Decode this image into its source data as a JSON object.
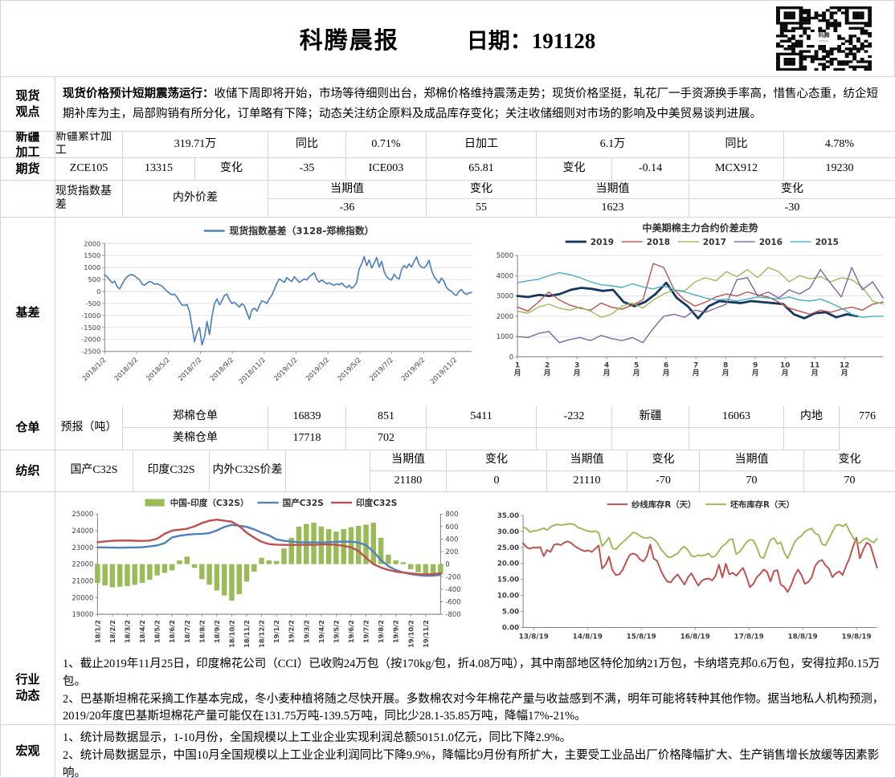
{
  "header": {
    "title": "科腾晨报",
    "date": "日期：191128",
    "qr_logo": "科腾"
  },
  "sections": {
    "spot_view": {
      "label": "现货\n观点",
      "lead": "现货价格预计短期震荡运行：",
      "body": "收储下周即将开始，市场等待细则出台，郑棉价格维持震荡走势；现货价格坚挺，轧花厂一手资源换手率高，惜售心态重，纺企短期补库为主，局部购销有所分化，订单略有下降；动态关注纺企原料及成品库存变化；关注收储细则对市场的影响及中美贸易谈判进展。"
    },
    "xinjiang": {
      "label": "新疆\n加工",
      "c": [
        "新疆累计加工",
        "319.71万",
        "同比",
        "0.71%",
        "日加工",
        "6.1万",
        "同比",
        "4.78%"
      ]
    },
    "futures": {
      "label": "期货",
      "c": [
        "ZCE105",
        "13315",
        "变化",
        "-35",
        "ICE003",
        "65.81",
        "变化",
        "-0.14",
        "MCX912",
        "19230"
      ]
    },
    "basis_table": {
      "name": "现货指数基差",
      "h1": "当期值",
      "v1": "-36",
      "h2": "变化",
      "v2": "55",
      "name2": "内外价差",
      "h3": "当期值",
      "v3": "1623",
      "h4": "变化",
      "v4": "-30"
    },
    "basis": {
      "label": "基差"
    },
    "warehouse": {
      "label": "仓单",
      "zh_name": "郑棉仓单",
      "zh_v1": "16839",
      "zh_v2": "851",
      "forecast": "预报（吨）",
      "fc_v1": "5411",
      "fc_v2": "-232",
      "xj_label": "新疆",
      "xj_v": "16063",
      "nd_label": "内地",
      "nd_v": "776",
      "us_name": "美棉仓单",
      "us_v1": "17718",
      "us_v2": "702"
    },
    "textile": {
      "label": "纺织",
      "n1": "国产C32S",
      "h1": "当期值",
      "v1": "21180",
      "h2": "变化",
      "v2": "0",
      "n2": "印度C32S",
      "h3": "当期值",
      "v3": "21110",
      "h4": "变化",
      "v4": "-70",
      "n3": "内外C32S价差",
      "h5": "当期值",
      "v5": "70",
      "h6": "变化",
      "v6": "70"
    },
    "industry": {
      "label": "行业\n动态",
      "p1": "1、截止2019年11月25日，印度棉花公司（CCI）已收购24万包（按170kg/包，折4.08万吨），其中南部地区特伦加纳21万包，卡纳塔克邦0.6万包，安得拉邦0.15万包。",
      "p2": "2、巴基斯坦棉花采摘工作基本完成，冬小麦种植将随之尽快开展。多数棉农对今年棉花产量与收益感到不满，明年可能将转种其他作物。据当地私人机构预测，2019/20年度巴基斯坦棉花产量可能仅在131.75万吨-139.5万吨，同比少28.1-35.85万吨，降幅17%-21%。"
    },
    "macro": {
      "label": "宏观",
      "p1": "1、统计局数据显示，1-10月份，全国规模以上工业企业实现利润总额50151.0亿元，同比下降2.9%。",
      "p2": "2、统计局数据显示，中国10月全国规模以上工业企业利润同比下降9.9%，降幅比9月份有所扩大，主要受工业品出厂价格降幅扩大、生产销售增长放缓等因素影响。"
    }
  },
  "colors": {
    "excel_blue": "#4f81bd",
    "excel_red": "#c0504d",
    "excel_green": "#9bbb59",
    "excel_purple": "#8064a2",
    "excel_cyan": "#4bacc6",
    "dark_blue_2019": "#17375e",
    "table_border": "#ccd5e0",
    "gridline": "#d9d9d9",
    "axis": "#808080"
  },
  "chart_data": [
    {
      "type": "line",
      "title": "现货指数基差（3128-郑棉指数）",
      "ylim": [
        -2500,
        2000
      ],
      "ytick_step": 500,
      "grid": true,
      "legend_position": "top-as-title",
      "x_tick_labels": [
        "2018/1/2",
        "2018/3/2",
        "2018/5/2",
        "2018/7/2",
        "2018/9/2",
        "2018/11/2",
        "2019/1/2",
        "2019/3/2",
        "2019/5/2",
        "2019/7/2",
        "2019/9/2",
        "2019/11/2"
      ],
      "series": [
        {
          "name": "现货指数基差（3128-郑棉指数）",
          "color": "#4f81bd",
          "width": 1.7,
          "values": [
            700,
            620,
            480,
            360,
            430,
            200,
            110,
            310,
            490,
            610,
            690,
            700,
            650,
            560,
            480,
            310,
            260,
            350,
            420,
            380,
            300,
            330,
            270,
            230,
            110,
            10,
            -70,
            -140,
            -110,
            -240,
            -420,
            -560,
            -580,
            -540,
            -850,
            -1450,
            -2100,
            -1700,
            -1500,
            -2230,
            -1900,
            -1250,
            -1800,
            -1050,
            -500,
            -310,
            -560,
            -380,
            -160,
            -110,
            -350,
            -500,
            -450,
            -550,
            -650,
            -500,
            -610,
            -880,
            -1150,
            -780,
            -690,
            -820,
            -580,
            -390,
            -430,
            -500,
            -300,
            -150,
            90,
            350,
            520,
            450,
            380,
            580,
            480,
            420,
            620,
            500,
            380,
            450,
            520,
            480,
            620,
            700,
            780,
            520,
            390,
            480,
            400,
            320,
            360,
            300,
            260,
            320,
            280,
            350,
            240,
            160,
            260,
            130,
            220,
            380,
            950,
            1150,
            1460,
            1080,
            1320,
            980,
            1180,
            1420,
            1020,
            1250,
            820,
            620,
            520,
            480,
            720,
            580,
            520,
            920,
            1080,
            980,
            1150,
            1020,
            1250,
            1440,
            1120,
            1020,
            980,
            1100,
            1300,
            880,
            620,
            480,
            350,
            560,
            420,
            160,
            60,
            0,
            -120,
            -160,
            0,
            80,
            -60,
            -120,
            -60,
            -40
          ]
        }
      ]
    },
    {
      "type": "line",
      "title": "中美期棉主力合约价差走势",
      "ylim": [
        0,
        5000
      ],
      "ytick_step": 1000,
      "grid": true,
      "legend_position": "top",
      "x_tick_labels": [
        "1月",
        "2月",
        "3月",
        "4月",
        "5月",
        "6月",
        "7月",
        "8月",
        "9月",
        "10月",
        "11月",
        "12月"
      ],
      "series": [
        {
          "name": "2019",
          "color": "#17375e",
          "width": 2.8,
          "fspan": 0.93,
          "values": [
            3000,
            2950,
            3050,
            3000,
            3100,
            3300,
            3400,
            3350,
            3250,
            3300,
            2700,
            2500,
            2700,
            3100,
            3650,
            2900,
            2500,
            1900,
            2500,
            2750,
            2700,
            2650,
            2750,
            2700,
            2650,
            2600,
            2100,
            1900,
            2150,
            2200,
            1950,
            2100,
            2000
          ]
        },
        {
          "name": "2018",
          "color": "#c0504d",
          "width": 1.4,
          "fspan": 1,
          "values": [
            2450,
            2250,
            2700,
            3200,
            2800,
            2550,
            2400,
            2300,
            2650,
            2450,
            2350,
            2550,
            2800,
            4600,
            4400,
            3300,
            2800,
            2500,
            2700,
            2950,
            3100,
            3000,
            3200,
            3050,
            2950,
            2700,
            2400,
            2250,
            2100,
            2300,
            2200,
            2350,
            2450,
            2300,
            2600,
            2700
          ]
        },
        {
          "name": "2017",
          "color": "#9bbb59",
          "width": 1.4,
          "fspan": 1,
          "values": [
            2250,
            2150,
            2450,
            2600,
            2400,
            2300,
            2450,
            2250,
            1950,
            2100,
            2500,
            2650,
            2400,
            2800,
            3100,
            3300,
            3250,
            3700,
            3900,
            3750,
            4200,
            3950,
            4300,
            3900,
            4400,
            4200,
            3700,
            4000,
            3850,
            3950,
            3700,
            3900,
            3800,
            3450,
            2750,
            2600
          ]
        },
        {
          "name": "2016",
          "color": "#8064a2",
          "width": 1.4,
          "fspan": 1,
          "values": [
            1000,
            950,
            1150,
            1250,
            700,
            850,
            950,
            800,
            1050,
            900,
            800,
            950,
            700,
            1400,
            2000,
            2100,
            1950,
            2300,
            2200,
            2400,
            2600,
            3800,
            3900,
            3000,
            3200,
            2900,
            3300,
            3100,
            3400,
            4300,
            3600,
            2950,
            4400,
            3300,
            3700,
            2900
          ]
        },
        {
          "name": "2015",
          "color": "#4bacc6",
          "width": 1.4,
          "fspan": 1,
          "values": [
            3650,
            3750,
            3820,
            4000,
            4150,
            4050,
            3900,
            3700,
            3550,
            3500,
            3420,
            3600,
            3450,
            3350,
            3500,
            3300,
            3200,
            3050,
            2900,
            2800,
            2850,
            2750,
            2850,
            2950,
            2900,
            2850,
            2950,
            2800,
            2750,
            2850,
            2650,
            2400,
            2100,
            1950,
            2000,
            2000
          ]
        }
      ]
    },
    {
      "type": "combo",
      "title": "",
      "left_ylim": [
        19000,
        25000
      ],
      "left_step": 1000,
      "right_ylim": [
        -800,
        800
      ],
      "right_step": 200,
      "grid": false,
      "legend_position": "top",
      "x_tick_labels": [
        "18/1/2",
        "18/2/2",
        "18/3/2",
        "18/4/2",
        "18/5/2",
        "18/6/2",
        "18/7/2",
        "18/8/2",
        "18/9/2",
        "18/10/2",
        "18/11/2",
        "18/12/2",
        "19/1/2",
        "19/2/2",
        "19/3/2",
        "19/4/2",
        "19/5/2",
        "19/6/2",
        "19/7/2",
        "19/8/2",
        "19/9/2",
        "19/10/2",
        "19/11/2"
      ],
      "series": [
        {
          "name": "中国-印度（C32S）",
          "type": "bar",
          "axis": "right",
          "color": "#9bbb59",
          "values": [
            -300,
            -340,
            -370,
            -360,
            -350,
            -330,
            -300,
            -250,
            -180,
            -140,
            -100,
            60,
            120,
            -60,
            -240,
            -330,
            -420,
            -500,
            -580,
            -480,
            -280,
            -120,
            100,
            60,
            50,
            250,
            420,
            600,
            640,
            660,
            600,
            560,
            520,
            560,
            590,
            610,
            630,
            660,
            420,
            150,
            60,
            30,
            -80,
            -130,
            -160,
            -190,
            -160
          ]
        },
        {
          "name": "国产C32S",
          "type": "line",
          "axis": "left",
          "color": "#4f81bd",
          "width": 2.4,
          "values": [
            23000,
            23000,
            22990,
            22980,
            22990,
            23000,
            23010,
            23060,
            23120,
            23260,
            23600,
            23700,
            23760,
            23800,
            23810,
            23860,
            24020,
            24220,
            24350,
            24300,
            24230,
            24080,
            23880,
            23720,
            23480,
            23400,
            23350,
            23310,
            23300,
            23300,
            23300,
            23310,
            23330,
            23350,
            23340,
            23290,
            23130,
            22750,
            22250,
            21880,
            21640,
            21500,
            21400,
            21340,
            21300,
            21310,
            21360
          ]
        },
        {
          "name": "印度C32S",
          "type": "line",
          "axis": "left",
          "color": "#c0504d",
          "width": 2.4,
          "values": [
            23310,
            23360,
            23400,
            23410,
            23420,
            23400,
            23390,
            23410,
            23520,
            23820,
            24010,
            24060,
            24120,
            24260,
            24460,
            24600,
            24660,
            24600,
            24540,
            24280,
            23880,
            23580,
            23340,
            23200,
            23160,
            23150,
            23150,
            23150,
            23160,
            23150,
            23180,
            23180,
            23150,
            23100,
            23000,
            22790,
            22380,
            22000,
            21790,
            21650,
            21550,
            21500,
            21450,
            21400,
            21380,
            21400,
            21460
          ]
        }
      ]
    },
    {
      "type": "line",
      "title": "",
      "ylim": [
        0,
        35
      ],
      "ytick_step": 5,
      "ytick_format": "2dp",
      "grid": false,
      "legend_position": "top",
      "x_tick_labels": [
        "13/8/19",
        "14/8/19",
        "15/8/19",
        "16/8/19",
        "17/8/19",
        "18/8/19",
        "19/8/19"
      ],
      "series": [
        {
          "name": "纱线库存R（天）",
          "color": "#c0504d",
          "width": 2,
          "values": [
            26.3,
            25.1,
            24.6,
            25.0,
            24.9,
            25.1,
            22.3,
            24.2,
            23.6,
            25.8,
            26.1,
            25.7,
            26.5,
            26.9,
            26.4,
            25.4,
            24.8,
            24.2,
            23.8,
            24.1,
            23.6,
            24.6,
            25.6,
            18.4,
            19.6,
            22.1,
            17.9,
            16.4,
            16.6,
            18.0,
            20.5,
            22.6,
            23.1,
            22.7,
            21.3,
            20.6,
            22.2,
            25.9,
            21.5,
            20.8,
            18.0,
            15.9,
            14.3,
            14.1,
            15.6,
            16.6,
            14.9,
            13.4,
            15.7,
            16.9,
            14.9,
            13.1,
            14.6,
            15.1,
            15.3,
            14.7,
            16.1,
            19.6,
            15.6,
            19.9,
            16.6,
            17.1,
            16.2,
            17.4,
            18.6,
            15.9,
            12.6,
            13.6,
            15.7,
            16.7,
            18.1,
            17.4,
            14.4,
            17.6,
            17.9,
            13.4,
            12.7,
            11.1,
            13.2,
            16.1,
            18.1,
            16.4,
            13.6,
            14.2,
            15.7,
            19.2,
            20.6,
            21.1,
            19.4,
            18.4,
            15.7,
            16.9,
            17.5,
            16.4,
            19.2,
            21.7,
            25.2,
            28.0,
            21.6,
            24.3,
            26.5,
            25.8,
            22.3,
            18.7
          ]
        },
        {
          "name": "坯布库存R（天）",
          "color": "#9bbb59",
          "width": 2,
          "values": [
            31.3,
            30.9,
            29.8,
            30.1,
            30.3,
            30.6,
            31.0,
            30.4,
            31.4,
            31.9,
            32.2,
            32.0,
            32.1,
            32.3,
            32.4,
            32.1,
            31.2,
            30.9,
            30.4,
            30.1,
            29.9,
            30.1,
            29.6,
            25.4,
            26.6,
            28.1,
            24.8,
            24.4,
            25.6,
            26.6,
            27.6,
            28.6,
            29.7,
            29.4,
            28.6,
            28.1,
            27.9,
            28.2,
            27.6,
            26.6,
            24.6,
            23.4,
            22.1,
            21.9,
            22.6,
            23.1,
            24.6,
            25.3,
            24.1,
            22.4,
            22.1,
            22.6,
            22.4,
            22.6,
            23.1,
            21.9,
            22.4,
            23.9,
            25.4,
            26.1,
            27.4,
            27.6,
            22.9,
            23.6,
            25.1,
            26.6,
            27.4,
            27.2,
            25.1,
            22.1,
            21.6,
            24.6,
            27.4,
            27.9,
            26.1,
            26.6,
            23.4,
            21.6,
            24.1,
            26.6,
            27.9,
            28.6,
            29.9,
            30.6,
            30.9,
            29.4,
            28.9,
            26.1,
            25.6,
            27.6,
            29.9,
            31.9,
            32.1,
            31.6,
            32.3,
            30.1,
            28.1,
            26.6,
            26.4,
            27.4,
            27.9,
            27.1,
            26.5,
            27.7
          ]
        }
      ]
    }
  ]
}
